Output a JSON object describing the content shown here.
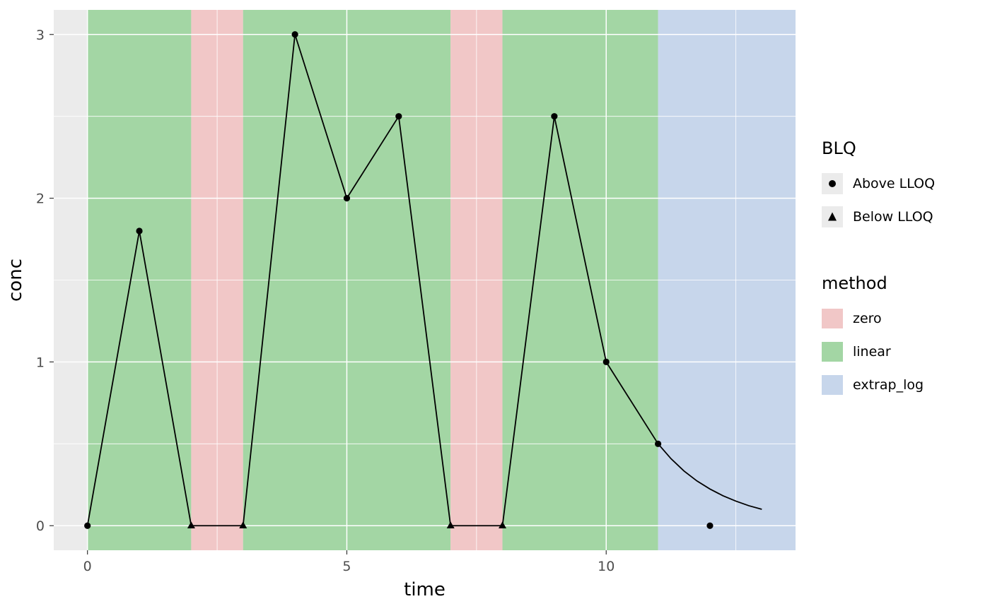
{
  "chart_data": {
    "type": "line",
    "title": "",
    "xlabel": "time",
    "ylabel": "conc",
    "xlim": [
      -0.65,
      13.65
    ],
    "ylim": [
      -0.15,
      3.15
    ],
    "x_major_ticks": [
      0,
      5,
      10
    ],
    "x_minor_ticks": [
      2.5,
      7.5,
      12.5
    ],
    "y_major_ticks": [
      0,
      1,
      2,
      3
    ],
    "y_minor_ticks": [
      0.5,
      1.5,
      2.5
    ],
    "grid": true,
    "legend_position": "right",
    "points": [
      {
        "x": 0,
        "y": 0,
        "blq": "Above LLOQ"
      },
      {
        "x": 1,
        "y": 1.8,
        "blq": "Above LLOQ"
      },
      {
        "x": 2,
        "y": 0,
        "blq": "Below LLOQ"
      },
      {
        "x": 3,
        "y": 0,
        "blq": "Below LLOQ"
      },
      {
        "x": 4,
        "y": 3,
        "blq": "Above LLOQ"
      },
      {
        "x": 5,
        "y": 2,
        "blq": "Above LLOQ"
      },
      {
        "x": 6,
        "y": 2.5,
        "blq": "Above LLOQ"
      },
      {
        "x": 7,
        "y": 0,
        "blq": "Below LLOQ"
      },
      {
        "x": 8,
        "y": 0,
        "blq": "Below LLOQ"
      },
      {
        "x": 9,
        "y": 2.5,
        "blq": "Above LLOQ"
      },
      {
        "x": 10,
        "y": 1,
        "blq": "Above LLOQ"
      },
      {
        "x": 11,
        "y": 0.5,
        "blq": "Above LLOQ"
      },
      {
        "x": 12,
        "y": 0,
        "blq": "Above LLOQ",
        "isolated": true
      }
    ],
    "extrapolation_curve": [
      {
        "x": 11.0,
        "y": 0.5
      },
      {
        "x": 11.25,
        "y": 0.409
      },
      {
        "x": 11.5,
        "y": 0.334
      },
      {
        "x": 11.75,
        "y": 0.273
      },
      {
        "x": 12.0,
        "y": 0.224
      },
      {
        "x": 12.25,
        "y": 0.183
      },
      {
        "x": 12.5,
        "y": 0.15
      },
      {
        "x": 12.75,
        "y": 0.122
      },
      {
        "x": 13.0,
        "y": 0.1
      }
    ],
    "regions": [
      {
        "method": "linear",
        "from": 0,
        "to": 2
      },
      {
        "method": "zero",
        "from": 2,
        "to": 3
      },
      {
        "method": "linear",
        "from": 3,
        "to": 7
      },
      {
        "method": "zero",
        "from": 7,
        "to": 8
      },
      {
        "method": "linear",
        "from": 8,
        "to": 11
      },
      {
        "method": "extrap_log",
        "from": 11,
        "to": 13.65
      }
    ],
    "method_colors": {
      "zero": "#F1C7C7",
      "linear": "#A3D6A4",
      "extrap_log": "#C7D6EB"
    },
    "panel_bg": "#EBEBEB",
    "grid_color": "#FFFFFF",
    "line_color": "#000000",
    "point_color": "#000000"
  },
  "axes": {
    "x_tick_labels": [
      "0",
      "5",
      "10"
    ],
    "y_tick_labels": [
      "0",
      "1",
      "2",
      "3"
    ]
  },
  "legend": {
    "blq": {
      "title": "BLQ",
      "items": [
        {
          "label": "Above LLOQ",
          "shape": "circle"
        },
        {
          "label": "Below LLOQ",
          "shape": "triangle"
        }
      ]
    },
    "method": {
      "title": "method",
      "items": [
        {
          "label": "zero",
          "color": "#F1C7C7"
        },
        {
          "label": "linear",
          "color": "#A3D6A4"
        },
        {
          "label": "extrap_log",
          "color": "#C7D6EB"
        }
      ]
    }
  }
}
